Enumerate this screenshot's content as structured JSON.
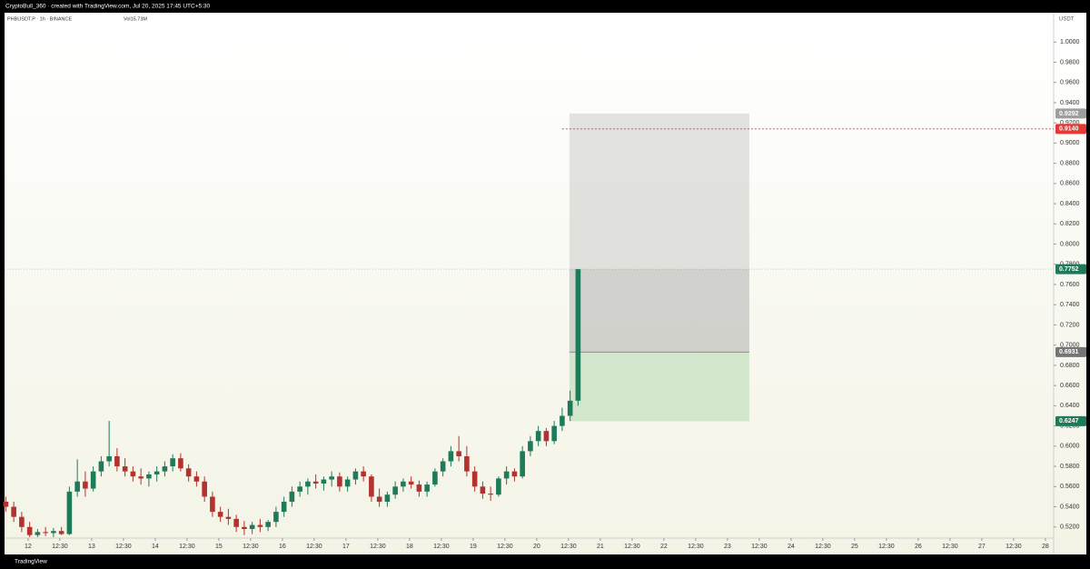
{
  "header": {
    "caption": "CryptoBull_360 · created with TradingView.com, Jul 20, 2025 17:45 UTC+5:30",
    "footer": "TradingView"
  },
  "chart_data": {
    "type": "candlestick",
    "symbol": "PHBUSDT.P · 1h · BINANCE",
    "volume": "Vol15.73M",
    "currency": "USDT",
    "up_color": "#1f7a5a",
    "down_color": "#b3322d",
    "xlim": [
      11.63,
      28.13
    ],
    "ylim": [
      0.509,
      1.029
    ],
    "xticks": [
      {
        "value": 12,
        "label": "12"
      },
      {
        "value": 12.5,
        "label": "12:30"
      },
      {
        "value": 13,
        "label": "13"
      },
      {
        "value": 13.5,
        "label": "12:30"
      },
      {
        "value": 14,
        "label": "14"
      },
      {
        "value": 14.5,
        "label": "12:30"
      },
      {
        "value": 15,
        "label": "15"
      },
      {
        "value": 15.5,
        "label": "12:30"
      },
      {
        "value": 16,
        "label": "16"
      },
      {
        "value": 16.5,
        "label": "12:30"
      },
      {
        "value": 17,
        "label": "17"
      },
      {
        "value": 17.5,
        "label": "12:30"
      },
      {
        "value": 18,
        "label": "18"
      },
      {
        "value": 18.5,
        "label": "12:30"
      },
      {
        "value": 19,
        "label": "19"
      },
      {
        "value": 19.5,
        "label": "12:30"
      },
      {
        "value": 20,
        "label": "20"
      },
      {
        "value": 20.5,
        "label": "12:30"
      },
      {
        "value": 21,
        "label": "21"
      },
      {
        "value": 21.5,
        "label": "12:30"
      },
      {
        "value": 22,
        "label": "22"
      },
      {
        "value": 22.5,
        "label": "12:30"
      },
      {
        "value": 23,
        "label": "23"
      },
      {
        "value": 23.5,
        "label": "12:30"
      },
      {
        "value": 24,
        "label": "24"
      },
      {
        "value": 24.5,
        "label": "12:30"
      },
      {
        "value": 25,
        "label": "25"
      },
      {
        "value": 25.5,
        "label": "12:30"
      },
      {
        "value": 26,
        "label": "26"
      },
      {
        "value": 26.5,
        "label": "12:30"
      },
      {
        "value": 27,
        "label": "27"
      },
      {
        "value": 27.5,
        "label": "12:30"
      },
      {
        "value": 28,
        "label": "28"
      }
    ],
    "yticks": [
      {
        "value": 1,
        "label": "1.0000"
      },
      {
        "value": 0.98,
        "label": "0.9800"
      },
      {
        "value": 0.96,
        "label": "0.9600"
      },
      {
        "value": 0.94,
        "label": "0.9400"
      },
      {
        "value": 0.92,
        "label": "0.9200"
      },
      {
        "value": 0.9,
        "label": "0.9000"
      },
      {
        "value": 0.88,
        "label": "0.8800"
      },
      {
        "value": 0.86,
        "label": "0.8600"
      },
      {
        "value": 0.84,
        "label": "0.8400"
      },
      {
        "value": 0.82,
        "label": "0.8200"
      },
      {
        "value": 0.8,
        "label": "0.8000"
      },
      {
        "value": 0.78,
        "label": "0.7800"
      },
      {
        "value": 0.76,
        "label": "0.7600"
      },
      {
        "value": 0.74,
        "label": "0.7400"
      },
      {
        "value": 0.72,
        "label": "0.7200"
      },
      {
        "value": 0.7,
        "label": "0.7000"
      },
      {
        "value": 0.68,
        "label": "0.6800"
      },
      {
        "value": 0.66,
        "label": "0.6600"
      },
      {
        "value": 0.64,
        "label": "0.6400"
      },
      {
        "value": 0.62,
        "label": "0.6200"
      },
      {
        "value": 0.6,
        "label": "0.6000"
      },
      {
        "value": 0.58,
        "label": "0.5800"
      },
      {
        "value": 0.56,
        "label": "0.5600"
      },
      {
        "value": 0.54,
        "label": "0.5400"
      },
      {
        "value": 0.52,
        "label": "0.5200"
      }
    ],
    "x": [
      11.65,
      11.775,
      11.9,
      12.025,
      12.15,
      12.275,
      12.4,
      12.525,
      12.65,
      12.775,
      12.9,
      13.025,
      13.15,
      13.275,
      13.4,
      13.525,
      13.65,
      13.775,
      13.9,
      14.025,
      14.15,
      14.275,
      14.4,
      14.525,
      14.65,
      14.775,
      14.9,
      15.025,
      15.15,
      15.275,
      15.4,
      15.525,
      15.65,
      15.775,
      15.9,
      16.025,
      16.15,
      16.275,
      16.4,
      16.525,
      16.65,
      16.775,
      16.9,
      17.025,
      17.15,
      17.275,
      17.4,
      17.525,
      17.65,
      17.775,
      17.9,
      18.025,
      18.15,
      18.275,
      18.4,
      18.525,
      18.65,
      18.775,
      18.9,
      19.025,
      19.15,
      19.275,
      19.4,
      19.525,
      19.65,
      19.775,
      19.9,
      20.025,
      20.15,
      20.275,
      20.4,
      20.525,
      20.65
    ],
    "ohlc": [
      [
        0.545,
        0.55,
        0.535,
        0.54
      ],
      [
        0.54,
        0.545,
        0.525,
        0.53
      ],
      [
        0.53,
        0.535,
        0.515,
        0.52
      ],
      [
        0.52,
        0.525,
        0.51,
        0.512
      ],
      [
        0.512,
        0.518,
        0.51,
        0.515
      ],
      [
        0.515,
        0.52,
        0.511,
        0.514
      ],
      [
        0.514,
        0.519,
        0.51,
        0.516
      ],
      [
        0.516,
        0.52,
        0.512,
        0.513
      ],
      [
        0.513,
        0.56,
        0.512,
        0.555
      ],
      [
        0.555,
        0.587,
        0.55,
        0.565
      ],
      [
        0.565,
        0.575,
        0.55,
        0.558
      ],
      [
        0.558,
        0.58,
        0.555,
        0.575
      ],
      [
        0.575,
        0.59,
        0.57,
        0.585
      ],
      [
        0.585,
        0.625,
        0.58,
        0.59
      ],
      [
        0.59,
        0.598,
        0.575,
        0.58
      ],
      [
        0.58,
        0.588,
        0.57,
        0.575
      ],
      [
        0.575,
        0.58,
        0.565,
        0.57
      ],
      [
        0.57,
        0.578,
        0.562,
        0.568
      ],
      [
        0.568,
        0.575,
        0.56,
        0.572
      ],
      [
        0.572,
        0.58,
        0.565,
        0.575
      ],
      [
        0.575,
        0.585,
        0.57,
        0.58
      ],
      [
        0.58,
        0.592,
        0.575,
        0.588
      ],
      [
        0.588,
        0.593,
        0.575,
        0.578
      ],
      [
        0.578,
        0.582,
        0.565,
        0.57
      ],
      [
        0.57,
        0.575,
        0.56,
        0.565
      ],
      [
        0.565,
        0.57,
        0.545,
        0.55
      ],
      [
        0.55,
        0.555,
        0.53,
        0.535
      ],
      [
        0.535,
        0.54,
        0.525,
        0.53
      ],
      [
        0.53,
        0.538,
        0.522,
        0.528
      ],
      [
        0.528,
        0.532,
        0.515,
        0.52
      ],
      [
        0.52,
        0.526,
        0.512,
        0.518
      ],
      [
        0.518,
        0.525,
        0.513,
        0.522
      ],
      [
        0.522,
        0.528,
        0.515,
        0.52
      ],
      [
        0.52,
        0.527,
        0.516,
        0.525
      ],
      [
        0.525,
        0.54,
        0.52,
        0.535
      ],
      [
        0.535,
        0.55,
        0.53,
        0.545
      ],
      [
        0.545,
        0.56,
        0.54,
        0.555
      ],
      [
        0.555,
        0.565,
        0.55,
        0.56
      ],
      [
        0.56,
        0.568,
        0.552,
        0.565
      ],
      [
        0.565,
        0.572,
        0.558,
        0.563
      ],
      [
        0.563,
        0.57,
        0.556,
        0.567
      ],
      [
        0.567,
        0.575,
        0.56,
        0.57
      ],
      [
        0.57,
        0.574,
        0.555,
        0.56
      ],
      [
        0.56,
        0.57,
        0.555,
        0.567
      ],
      [
        0.567,
        0.578,
        0.562,
        0.575
      ],
      [
        0.575,
        0.58,
        0.565,
        0.57
      ],
      [
        0.57,
        0.572,
        0.545,
        0.55
      ],
      [
        0.55,
        0.558,
        0.54,
        0.545
      ],
      [
        0.545,
        0.555,
        0.54,
        0.552
      ],
      [
        0.552,
        0.565,
        0.548,
        0.56
      ],
      [
        0.56,
        0.568,
        0.555,
        0.565
      ],
      [
        0.565,
        0.57,
        0.558,
        0.562
      ],
      [
        0.562,
        0.566,
        0.55,
        0.555
      ],
      [
        0.555,
        0.565,
        0.55,
        0.562
      ],
      [
        0.562,
        0.578,
        0.56,
        0.575
      ],
      [
        0.575,
        0.588,
        0.57,
        0.585
      ],
      [
        0.585,
        0.6,
        0.58,
        0.595
      ],
      [
        0.595,
        0.61,
        0.585,
        0.59
      ],
      [
        0.59,
        0.6,
        0.57,
        0.575
      ],
      [
        0.575,
        0.58,
        0.555,
        0.56
      ],
      [
        0.56,
        0.565,
        0.548,
        0.553
      ],
      [
        0.553,
        0.56,
        0.546,
        0.552
      ],
      [
        0.552,
        0.57,
        0.55,
        0.568
      ],
      [
        0.568,
        0.58,
        0.562,
        0.575
      ],
      [
        0.575,
        0.578,
        0.565,
        0.57
      ],
      [
        0.57,
        0.6,
        0.568,
        0.595
      ],
      [
        0.595,
        0.61,
        0.59,
        0.605
      ],
      [
        0.605,
        0.62,
        0.6,
        0.615
      ],
      [
        0.615,
        0.618,
        0.6,
        0.605
      ],
      [
        0.605,
        0.625,
        0.602,
        0.62
      ],
      [
        0.62,
        0.638,
        0.615,
        0.63
      ],
      [
        0.63,
        0.655,
        0.625,
        0.645
      ],
      [
        0.645,
        0.7752,
        0.64,
        0.7752
      ]
    ],
    "position": {
      "x_start": 20.514,
      "x_end": 23.343,
      "top": 0.9292,
      "entry": 0.6931,
      "bottom": 0.6247
    },
    "alert_line": {
      "value": 0.914,
      "color": "#e53935"
    },
    "price_labels": [
      {
        "value": 0.9292,
        "label": "0.9292",
        "color": "#9e9e9e"
      },
      {
        "value": 0.914,
        "label": "0.9140",
        "color": "#e53935"
      },
      {
        "value": 0.7752,
        "label": "0.7752",
        "color": "#1f7a5a"
      },
      {
        "value": 0.6931,
        "label": "0.6931",
        "color": "#757575"
      },
      {
        "value": 0.6247,
        "label": "0.6247",
        "color": "#1f7a5a"
      }
    ]
  }
}
